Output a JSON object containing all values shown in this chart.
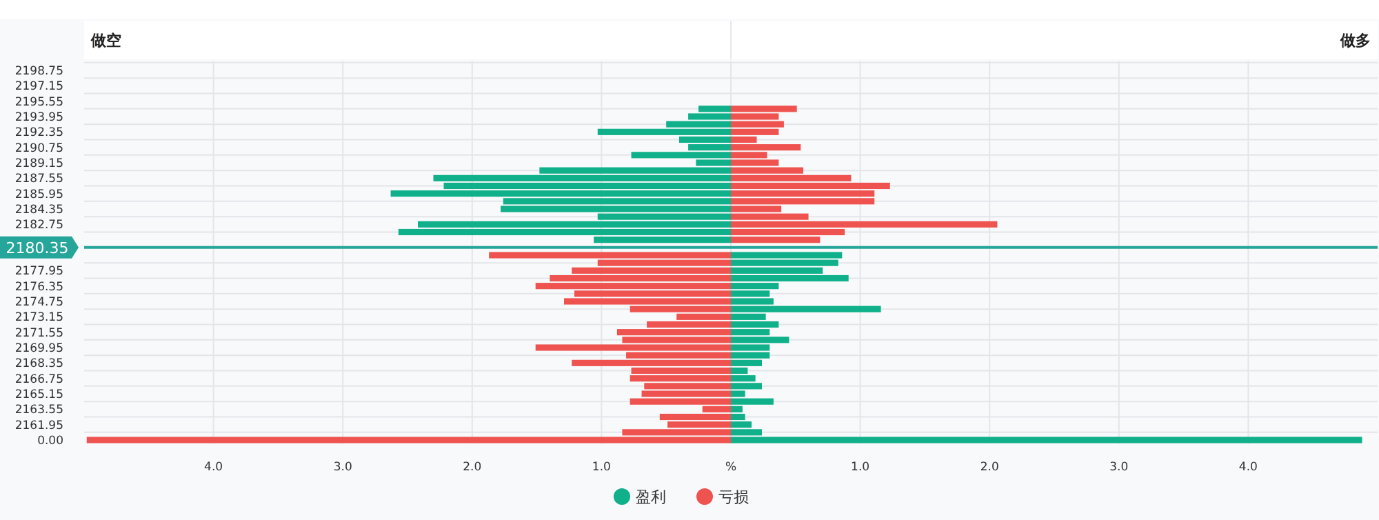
{
  "chart_data": {
    "type": "bar",
    "orientation": "horizontal",
    "stacked": true,
    "categories": [
      "2198.75",
      null,
      "2197.15",
      null,
      "2195.55",
      null,
      "2193.95",
      null,
      "2192.35",
      null,
      "2190.75",
      null,
      "2189.15",
      null,
      "2187.55",
      null,
      "2185.95",
      null,
      "2184.35",
      null,
      "2182.75",
      null,
      null,
      "2180.35",
      null,
      null,
      "2177.95",
      null,
      "2176.35",
      null,
      "2174.75",
      null,
      "2173.15",
      null,
      "2171.55",
      null,
      "2169.95",
      null,
      "2168.35",
      null,
      "2166.75",
      null,
      "2165.15",
      null,
      "2163.55",
      null,
      "2161.95",
      null,
      "0.00"
    ],
    "series": [
      {
        "name": "盈利",
        "color": "#0fb08a",
        "values": [
          null,
          null,
          null,
          null,
          null,
          -0.25,
          -0.33,
          -0.5,
          -1.03,
          -0.4,
          -0.33,
          -0.77,
          -0.27,
          -1.48,
          -2.3,
          -2.22,
          -2.63,
          -1.76,
          -1.78,
          -1.03,
          -2.42,
          -2.57,
          -1.06,
          null,
          0.86,
          0.83,
          0.71,
          0.91,
          0.37,
          0.3,
          0.33,
          1.16,
          0.27,
          0.37,
          0.3,
          0.45,
          0.3,
          0.3,
          0.24,
          0.13,
          0.19,
          0.24,
          0.11,
          0.33,
          0.09,
          0.11,
          0.16,
          0.24,
          4.88
        ]
      },
      {
        "name": "亏损",
        "color": "#ef5350",
        "values": [
          null,
          null,
          null,
          null,
          null,
          0.51,
          0.37,
          0.41,
          0.37,
          0.2,
          0.54,
          0.28,
          0.37,
          0.56,
          0.93,
          1.23,
          1.11,
          1.11,
          0.39,
          0.6,
          2.06,
          0.88,
          0.69,
          null,
          -1.87,
          -1.03,
          -1.23,
          -1.4,
          -1.51,
          -1.21,
          -1.29,
          -0.78,
          -0.42,
          -0.65,
          -0.88,
          -0.84,
          -1.51,
          -0.81,
          -1.23,
          -0.77,
          -0.78,
          -0.67,
          -0.69,
          -0.78,
          -0.22,
          -0.55,
          -0.49,
          -0.84,
          -4.98
        ]
      }
    ],
    "xlim": [
      -5,
      5
    ],
    "xticks": [
      {
        "value": -4,
        "label": "4.0"
      },
      {
        "value": -3,
        "label": "3.0"
      },
      {
        "value": -2,
        "label": "2.0"
      },
      {
        "value": -1,
        "label": "1.0"
      },
      {
        "value": 0,
        "label": "%"
      },
      {
        "value": 1,
        "label": "1.0"
      },
      {
        "value": 2,
        "label": "2.0"
      },
      {
        "value": 3,
        "label": "3.0"
      },
      {
        "value": 4,
        "label": "4.0"
      }
    ],
    "ref_lines": [
      {
        "axis": "y",
        "value": "2180.35",
        "label": "2180.35",
        "color": "#26a69a"
      }
    ],
    "annotations": [
      "做空",
      "做多"
    ],
    "grid": true,
    "legend": "bottom"
  }
}
